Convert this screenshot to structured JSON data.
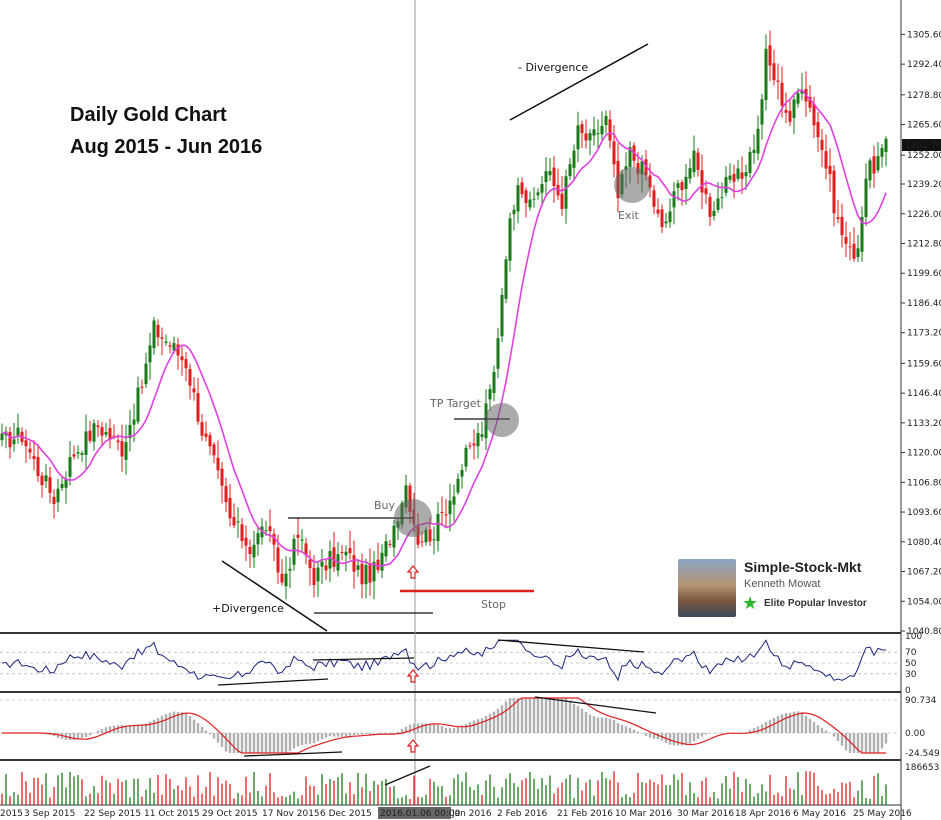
{
  "chart_data": {
    "type": "candlestick",
    "title_line1": "Daily Gold Chart",
    "title_line2": "Aug 2015 - Jun 2016",
    "current_price_label": "1251.76",
    "price_axis": {
      "range": [
        1040.8,
        1312.0
      ],
      "ticks": [
        "1305.60",
        "1292.40",
        "1278.80",
        "1265.60",
        "1252.00",
        "1239.20",
        "1226.00",
        "1212.80",
        "1199.60",
        "1186.40",
        "1173.20",
        "1159.60",
        "1146.40",
        "1133.20",
        "1120.00",
        "1106.80",
        "1093.60",
        "1080.40",
        "1067.20",
        "1054.00",
        "1040.80"
      ]
    },
    "date_labels": [
      "2015",
      "3 Sep 2015",
      "22 Sep 2015",
      "11 Oct 2015",
      "29 Oct 2015",
      "17 Nov 2015",
      "6 Dec 2015",
      "2016.01.06 00:00",
      "Jan 2016",
      "2 Feb 2016",
      "21 Feb 2016",
      "10 Mar 2016",
      "30 Mar 2016",
      "18 Apr 2016",
      "6 May 2016",
      "25 May 2016"
    ],
    "close_path": [
      {
        "i": 0,
        "p": 1125
      },
      {
        "i": 5,
        "p": 1128
      },
      {
        "i": 9,
        "p": 1112
      },
      {
        "i": 13,
        "p": 1100
      },
      {
        "i": 18,
        "p": 1120
      },
      {
        "i": 24,
        "p": 1132
      },
      {
        "i": 30,
        "p": 1122
      },
      {
        "i": 35,
        "p": 1150
      },
      {
        "i": 38,
        "p": 1175
      },
      {
        "i": 42,
        "p": 1168
      },
      {
        "i": 46,
        "p": 1160
      },
      {
        "i": 50,
        "p": 1130
      },
      {
        "i": 53,
        "p": 1115
      },
      {
        "i": 57,
        "p": 1090
      },
      {
        "i": 62,
        "p": 1078
      },
      {
        "i": 66,
        "p": 1088
      },
      {
        "i": 70,
        "p": 1062
      },
      {
        "i": 74,
        "p": 1083
      },
      {
        "i": 78,
        "p": 1065
      },
      {
        "i": 82,
        "p": 1072
      },
      {
        "i": 86,
        "p": 1075
      },
      {
        "i": 90,
        "p": 1065
      },
      {
        "i": 94,
        "p": 1068
      },
      {
        "i": 98,
        "p": 1088
      },
      {
        "i": 101,
        "p": 1106
      },
      {
        "i": 104,
        "p": 1082
      },
      {
        "i": 108,
        "p": 1085
      },
      {
        "i": 112,
        "p": 1100
      },
      {
        "i": 116,
        "p": 1118
      },
      {
        "i": 120,
        "p": 1130
      },
      {
        "i": 123,
        "p": 1155
      },
      {
        "i": 126,
        "p": 1210
      },
      {
        "i": 129,
        "p": 1243
      },
      {
        "i": 132,
        "p": 1228
      },
      {
        "i": 136,
        "p": 1245
      },
      {
        "i": 140,
        "p": 1232
      },
      {
        "i": 144,
        "p": 1262
      },
      {
        "i": 147,
        "p": 1258
      },
      {
        "i": 151,
        "p": 1268
      },
      {
        "i": 154,
        "p": 1233
      },
      {
        "i": 157,
        "p": 1253
      },
      {
        "i": 161,
        "p": 1243
      },
      {
        "i": 165,
        "p": 1218
      },
      {
        "i": 169,
        "p": 1238
      },
      {
        "i": 173,
        "p": 1250
      },
      {
        "i": 177,
        "p": 1228
      },
      {
        "i": 181,
        "p": 1238
      },
      {
        "i": 185,
        "p": 1243
      },
      {
        "i": 189,
        "p": 1262
      },
      {
        "i": 191,
        "p": 1296
      },
      {
        "i": 194,
        "p": 1282
      },
      {
        "i": 197,
        "p": 1268
      },
      {
        "i": 200,
        "p": 1285
      },
      {
        "i": 203,
        "p": 1268
      },
      {
        "i": 206,
        "p": 1248
      },
      {
        "i": 209,
        "p": 1222
      },
      {
        "i": 212,
        "p": 1208
      },
      {
        "i": 214,
        "p": 1212
      },
      {
        "i": 216,
        "p": 1243
      },
      {
        "i": 219,
        "p": 1250
      },
      {
        "i": 221,
        "p": 1255
      }
    ],
    "indicators": {
      "rsi": {
        "levels": [
          "100",
          "70",
          "50",
          "30",
          "0"
        ]
      },
      "macd": {
        "levels": [
          "90.734",
          "0.00",
          "-24.549"
        ]
      },
      "volume": {
        "max_label": "186653"
      }
    },
    "annotations": {
      "divergence_top": "- Divergence",
      "divergence_bottom": "+Divergence",
      "buy": "Buy",
      "stop": "Stop",
      "tp_target": "TP Target",
      "exit": "Exit"
    },
    "colors": {
      "bull": "#1a7a1a",
      "bear": "#e01e1e",
      "ma": "#e040e0",
      "rsi": "#1a237e",
      "signal": "#e01e1e",
      "vline": "#999999"
    }
  },
  "badge": {
    "name": "Simple-Stock-Mkt",
    "author": "Kenneth Mowat",
    "status": "Elite Popular Investor",
    "star_icon": "star-icon",
    "photo_icon": "author-photo"
  }
}
